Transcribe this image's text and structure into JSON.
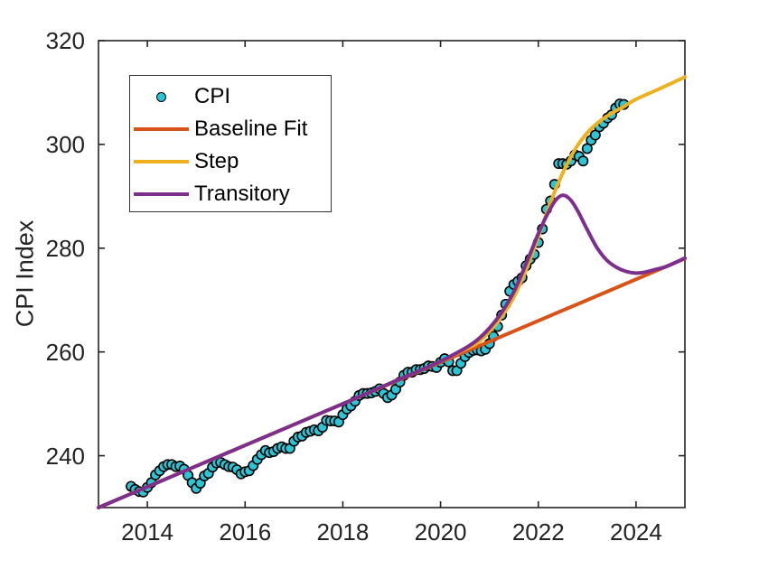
{
  "figure": {
    "background": "#ffffff"
  },
  "chart_data": {
    "type": "scatter+line",
    "title": "",
    "xlabel": "",
    "ylabel": "CPI Index",
    "xlim": [
      2013,
      2025
    ],
    "ylim": [
      230,
      320
    ],
    "xticks": [
      2014,
      2016,
      2018,
      2020,
      2022,
      2024
    ],
    "yticks": [
      240,
      260,
      280,
      300,
      320
    ],
    "grid": false,
    "axis_color": "#232323",
    "legend": {
      "position": "upper-left",
      "entries": [
        {
          "label": "CPI",
          "type": "marker",
          "color": "#2CC5D6",
          "edge_color": "#000000"
        },
        {
          "label": "Baseline Fit",
          "type": "line",
          "color": "#D95319"
        },
        {
          "label": "Step",
          "type": "line",
          "color": "#EDB120"
        },
        {
          "label": "Transitory",
          "type": "line",
          "color": "#7E2F8E"
        }
      ]
    },
    "scatter": {
      "name": "CPI",
      "marker": "circle",
      "fill_color": "#2CC5D6",
      "edge_color": "#000000",
      "start_year": 2013,
      "start_month": 9,
      "frequency": "monthly",
      "values": [
        234.1,
        233.5,
        233.1,
        233.0,
        233.9,
        234.8,
        236.3,
        237.1,
        237.9,
        238.3,
        238.3,
        237.9,
        238.0,
        237.4,
        236.2,
        234.8,
        233.7,
        234.7,
        236.1,
        236.6,
        237.8,
        238.6,
        238.7,
        238.3,
        237.9,
        237.8,
        237.3,
        236.5,
        236.9,
        237.1,
        238.1,
        239.3,
        240.2,
        241.0,
        240.6,
        240.8,
        241.4,
        241.7,
        241.4,
        241.4,
        242.8,
        243.6,
        243.8,
        244.5,
        244.7,
        245.0,
        244.8,
        245.5,
        246.8,
        246.7,
        246.7,
        246.5,
        247.9,
        249.0,
        249.6,
        250.5,
        251.6,
        252.0,
        252.0,
        252.1,
        252.4,
        252.9,
        252.0,
        251.2,
        251.7,
        252.8,
        254.2,
        255.5,
        256.1,
        256.1,
        256.6,
        256.6,
        256.8,
        257.3,
        257.2,
        257.0,
        258.0,
        258.7,
        258.1,
        256.4,
        256.4,
        257.8,
        259.1,
        259.9,
        260.3,
        260.4,
        260.2,
        260.5,
        261.6,
        263.0,
        264.9,
        267.1,
        269.2,
        271.7,
        273.0,
        273.6,
        274.3,
        276.6,
        277.9,
        278.8,
        281.1,
        283.7,
        287.5,
        289.1,
        292.3,
        296.3,
        296.3,
        296.2,
        296.8,
        298.0,
        297.7,
        296.8,
        299.2,
        300.8,
        301.8,
        303.4,
        304.1,
        305.1,
        305.7,
        307.0,
        307.8,
        307.7
      ]
    },
    "series": [
      {
        "name": "Baseline Fit",
        "color": "#D95319",
        "points": [
          [
            2013,
            230
          ],
          [
            2025,
            278
          ]
        ]
      },
      {
        "name": "Step",
        "color": "#EDB120",
        "points": [
          [
            2013,
            230
          ],
          [
            2014,
            234
          ],
          [
            2015,
            238
          ],
          [
            2016,
            242
          ],
          [
            2017,
            246
          ],
          [
            2018,
            250
          ],
          [
            2019,
            254.1
          ],
          [
            2019.5,
            256.1
          ],
          [
            2020,
            258.2
          ],
          [
            2020.5,
            260.5
          ],
          [
            2020.75,
            261.7
          ],
          [
            2021,
            263.9
          ],
          [
            2021.25,
            266.8
          ],
          [
            2021.5,
            270.6
          ],
          [
            2021.75,
            275.8
          ],
          [
            2022,
            282.2
          ],
          [
            2022.25,
            288.8
          ],
          [
            2022.5,
            294.5
          ],
          [
            2022.75,
            299.0
          ],
          [
            2023,
            302.2
          ],
          [
            2023.25,
            304.4
          ],
          [
            2023.5,
            306.0
          ],
          [
            2023.75,
            307.3
          ],
          [
            2024,
            308.7
          ],
          [
            2024.5,
            310.8
          ],
          [
            2025,
            313.0
          ]
        ]
      },
      {
        "name": "Transitory",
        "color": "#7E2F8E",
        "points": [
          [
            2013,
            230
          ],
          [
            2014,
            234
          ],
          [
            2015,
            238
          ],
          [
            2016,
            242
          ],
          [
            2017,
            246
          ],
          [
            2018,
            250
          ],
          [
            2019,
            254.1
          ],
          [
            2019.5,
            256.1
          ],
          [
            2020,
            258.2
          ],
          [
            2020.5,
            260.7
          ],
          [
            2020.75,
            262.3
          ],
          [
            2021,
            264.6
          ],
          [
            2021.25,
            267.6
          ],
          [
            2021.5,
            271.6
          ],
          [
            2021.75,
            277.0
          ],
          [
            2022,
            282.8
          ],
          [
            2022.2,
            286.8
          ],
          [
            2022.35,
            289.2
          ],
          [
            2022.5,
            290.2
          ],
          [
            2022.65,
            289.4
          ],
          [
            2022.8,
            287.3
          ],
          [
            2023,
            283.6
          ],
          [
            2023.2,
            280.1
          ],
          [
            2023.4,
            277.7
          ],
          [
            2023.6,
            276.3
          ],
          [
            2023.8,
            275.5
          ],
          [
            2024,
            275.2
          ],
          [
            2024.2,
            275.4
          ],
          [
            2024.4,
            275.9
          ],
          [
            2024.6,
            276.4
          ],
          [
            2024.8,
            277.2
          ],
          [
            2025,
            278.1
          ]
        ]
      }
    ]
  }
}
